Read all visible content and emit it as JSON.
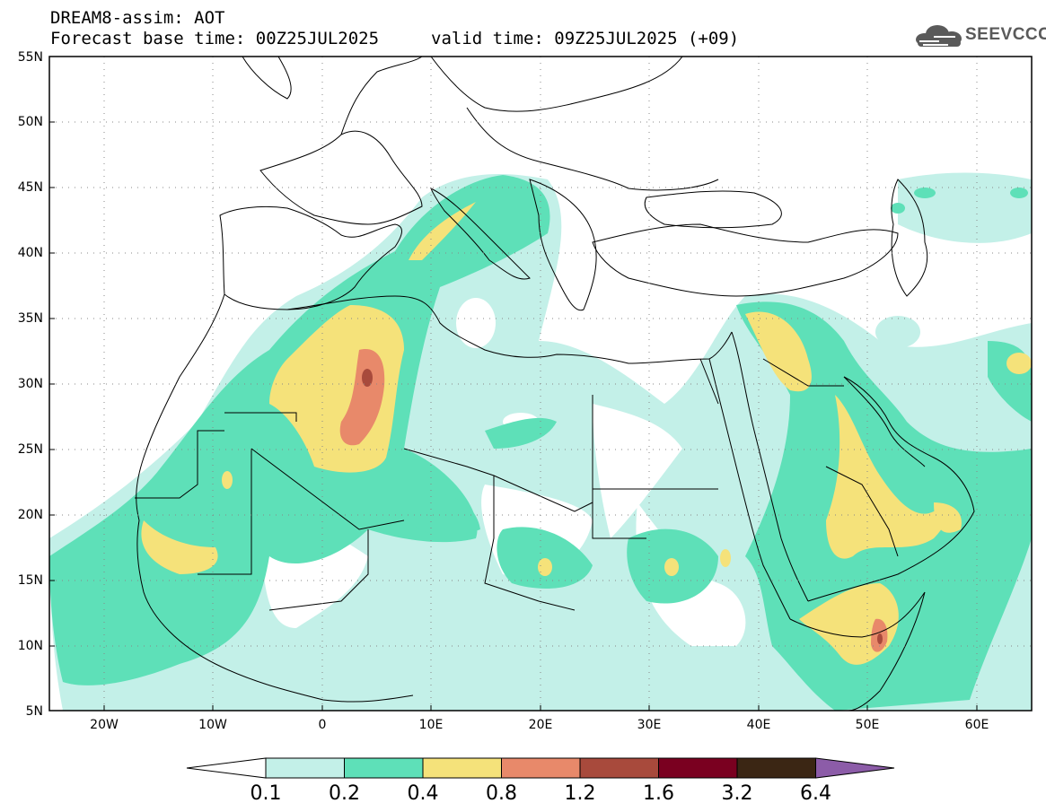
{
  "header": {
    "title": "DREAM8-assim: AOT",
    "base_time": "Forecast base time: 00Z25JUL2025",
    "valid_time": "valid time: 09Z25JUL2025 (+09)"
  },
  "logo": {
    "text": "SEEVCCC",
    "icon": "cloud-icon"
  },
  "map": {
    "variable": "Aerosol Optical Thickness",
    "lon_range": [
      -25,
      65
    ],
    "lat_range": [
      5,
      55
    ],
    "lat_labels": [
      "5N",
      "10N",
      "15N",
      "20N",
      "25N",
      "30N",
      "35N",
      "40N",
      "45N",
      "50N",
      "55N"
    ],
    "lon_labels": [
      "20W",
      "10W",
      "0",
      "10E",
      "20E",
      "30E",
      "40E",
      "50E",
      "60E"
    ],
    "grid": "dotted"
  },
  "colorbar": {
    "levels": [
      "0.1",
      "0.2",
      "0.4",
      "0.8",
      "1.2",
      "1.6",
      "3.2",
      "6.4"
    ],
    "colors": [
      "#ffffff",
      "#c3f0e8",
      "#5ee0b8",
      "#f5e27a",
      "#e8896a",
      "#a84a3c",
      "#7a0020",
      "#3b2614",
      "#8c5ca8"
    ]
  }
}
